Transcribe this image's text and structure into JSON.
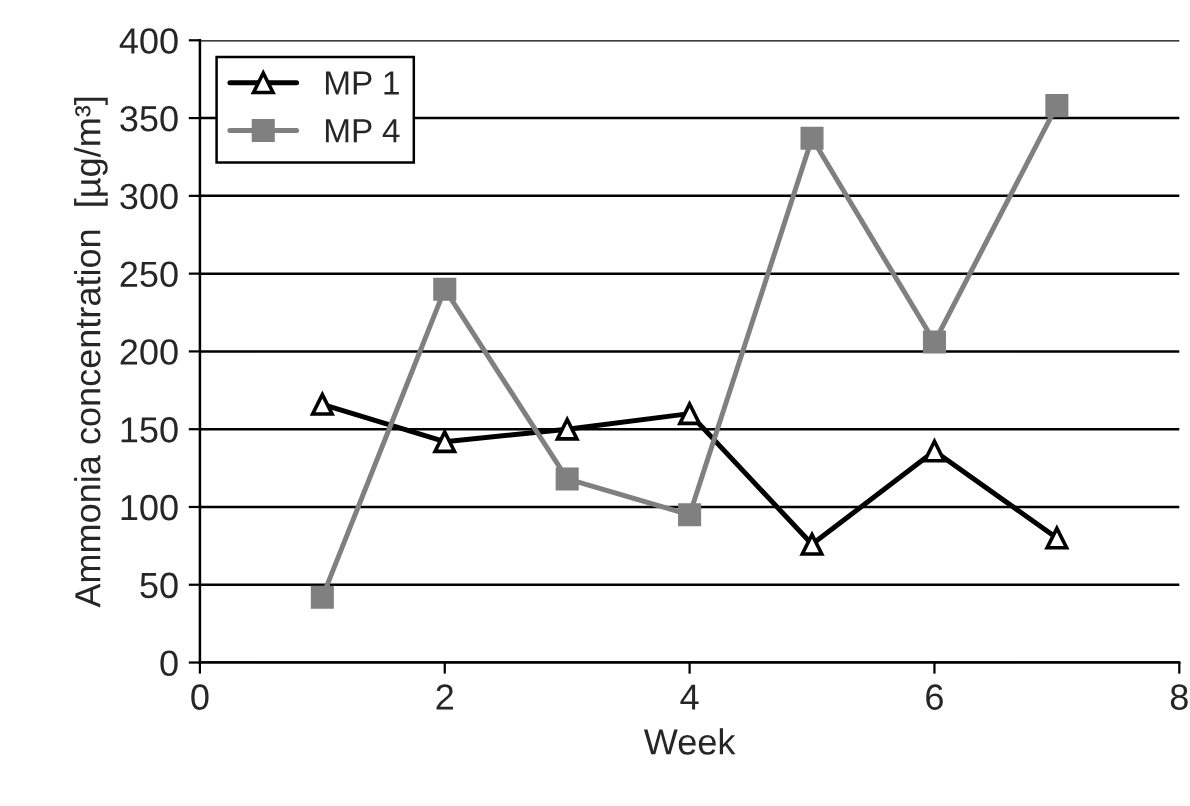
{
  "chart_data": {
    "type": "line",
    "xlabel": "Week",
    "ylabel": "Ammonia concentration  [µg/m³]",
    "x": [
      1,
      2,
      3,
      4,
      5,
      6,
      7
    ],
    "series": [
      {
        "name": "MP 1",
        "color": "#000000",
        "marker": "triangle",
        "values": [
          166,
          142,
          150,
          160,
          76,
          136,
          80
        ]
      },
      {
        "name": "MP 4",
        "color": "#808080",
        "marker": "square",
        "values": [
          42,
          240,
          118,
          95,
          337,
          206,
          358
        ]
      }
    ],
    "xlim": [
      0,
      8
    ],
    "xticks": [
      0,
      2,
      4,
      6,
      8
    ],
    "ylim": [
      0,
      400
    ],
    "yticks": [
      0,
      50,
      100,
      150,
      200,
      250,
      300,
      350,
      400
    ],
    "grid": "y",
    "legend": "top left",
    "line_style": "solid"
  }
}
